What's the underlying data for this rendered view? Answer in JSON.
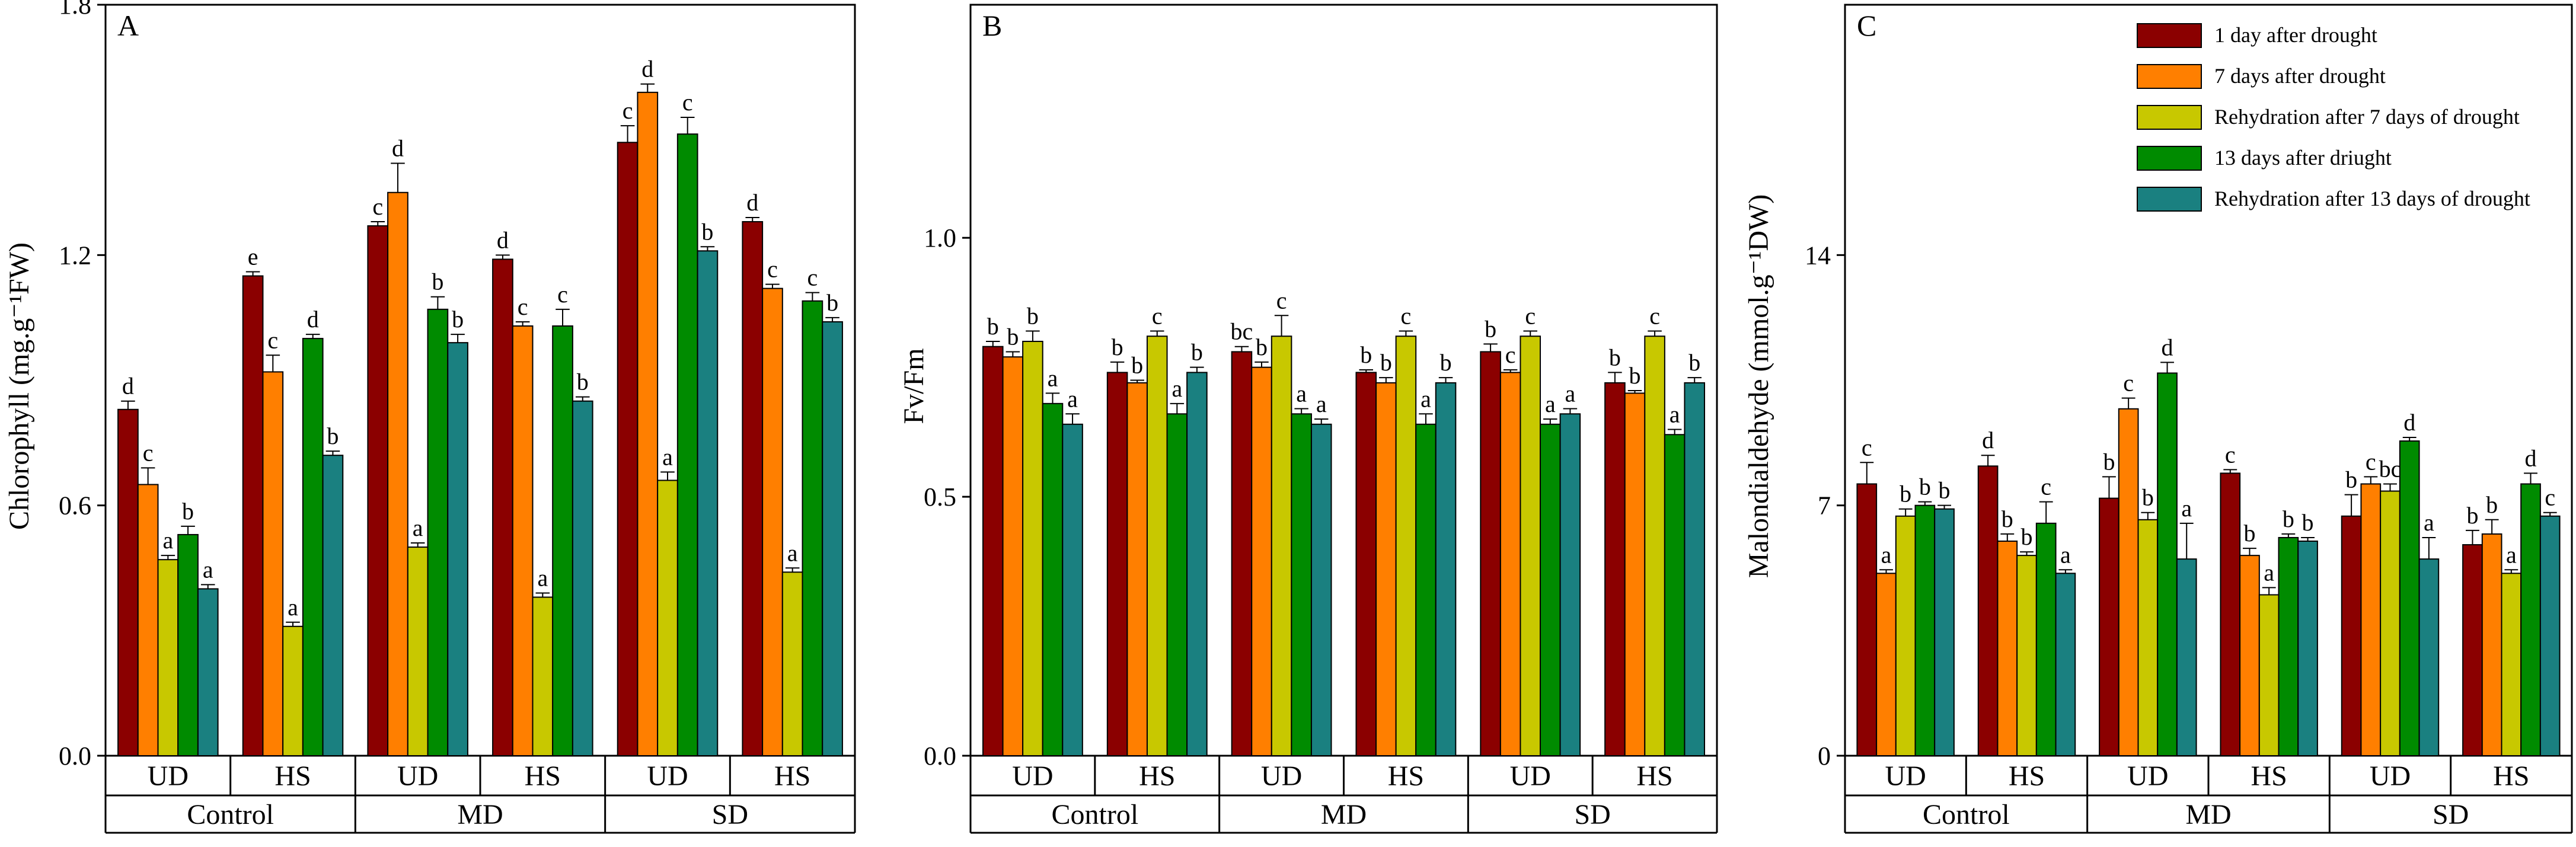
{
  "colors": {
    "series": [
      "#8b0000",
      "#ff7f00",
      "#c8c800",
      "#008b00",
      "#1a8080"
    ]
  },
  "legend": [
    "1 day after drought",
    "7 days after drought",
    "Rehydration after 7 days of drought",
    "13 days after driught",
    "Rehydration after 13 days of drought"
  ],
  "chart_data": [
    {
      "type": "bar",
      "panel": "A",
      "ylabel": "Chlorophyll (mg.g⁻¹FW)",
      "ylim": [
        0,
        1.8
      ],
      "yticks": [
        "0.0",
        "0.6",
        "1.2",
        "1.8"
      ],
      "ytick_values": [
        0,
        0.6,
        1.2,
        1.8
      ],
      "categories": [
        "UD",
        "HS",
        "UD",
        "HS",
        "UD",
        "HS"
      ],
      "groups": [
        "Control",
        "MD",
        "SD"
      ],
      "series": [
        {
          "name": "1 day after drought",
          "values": [
            0.83,
            1.15,
            1.27,
            1.19,
            1.47,
            1.28
          ],
          "errors": [
            0.02,
            0.01,
            0.01,
            0.01,
            0.04,
            0.01
          ],
          "labels": [
            "d",
            "e",
            "c",
            "d",
            "c",
            "d"
          ]
        },
        {
          "name": "7 days after drought",
          "values": [
            0.65,
            0.92,
            1.35,
            1.03,
            1.59,
            1.12
          ],
          "errors": [
            0.04,
            0.04,
            0.07,
            0.01,
            0.02,
            0.01
          ],
          "labels": [
            "c",
            "c",
            "d",
            "c",
            "d",
            "c"
          ]
        },
        {
          "name": "Rehydration after 7 days of drought",
          "values": [
            0.47,
            0.31,
            0.5,
            0.38,
            0.66,
            0.44
          ],
          "errors": [
            0.01,
            0.01,
            0.01,
            0.01,
            0.02,
            0.01
          ],
          "labels": [
            "a",
            "a",
            "a",
            "a",
            "a",
            "a"
          ]
        },
        {
          "name": "13 days after driught",
          "values": [
            0.53,
            1.0,
            1.07,
            1.03,
            1.49,
            1.09
          ],
          "errors": [
            0.02,
            0.01,
            0.03,
            0.04,
            0.04,
            0.02
          ],
          "labels": [
            "b",
            "d",
            "b",
            "c",
            "c",
            "c"
          ]
        },
        {
          "name": "Rehydration after 13 days of drought",
          "values": [
            0.4,
            0.72,
            0.99,
            0.85,
            1.21,
            1.04
          ],
          "errors": [
            0.01,
            0.01,
            0.02,
            0.01,
            0.01,
            0.01
          ],
          "labels": [
            "a",
            "b",
            "b",
            "b",
            "b",
            "b"
          ]
        }
      ]
    },
    {
      "type": "bar",
      "panel": "B",
      "ylabel": "Fv/Fm",
      "ylim": [
        0,
        1.45
      ],
      "yticks": [
        "0.0",
        "0.5",
        "1.0"
      ],
      "ytick_values": [
        0,
        0.5,
        1.0
      ],
      "categories": [
        "UD",
        "HS",
        "UD",
        "HS",
        "UD",
        "HS"
      ],
      "groups": [
        "Control",
        "MD",
        "SD"
      ],
      "series": [
        {
          "name": "1 day after drought",
          "values": [
            0.79,
            0.74,
            0.78,
            0.74,
            0.78,
            0.72
          ],
          "errors": [
            0.01,
            0.02,
            0.01,
            0.005,
            0.015,
            0.02
          ],
          "labels": [
            "b",
            "b",
            "bc",
            "b",
            "b",
            "b"
          ]
        },
        {
          "name": "7 days after drought",
          "values": [
            0.77,
            0.72,
            0.75,
            0.72,
            0.74,
            0.7
          ],
          "errors": [
            0.01,
            0.005,
            0.01,
            0.01,
            0.005,
            0.005
          ],
          "labels": [
            "b",
            "b",
            "b",
            "b",
            "c",
            "b"
          ]
        },
        {
          "name": "Rehydration after 7 days of drought",
          "values": [
            0.8,
            0.81,
            0.81,
            0.81,
            0.81,
            0.81
          ],
          "errors": [
            0.02,
            0.01,
            0.04,
            0.01,
            0.01,
            0.01
          ],
          "labels": [
            "b",
            "c",
            "c",
            "c",
            "c",
            "c"
          ]
        },
        {
          "name": "13 days after driught",
          "values": [
            0.68,
            0.66,
            0.66,
            0.64,
            0.64,
            0.62
          ],
          "errors": [
            0.02,
            0.02,
            0.01,
            0.02,
            0.01,
            0.01
          ],
          "labels": [
            "a",
            "a",
            "a",
            "a",
            "a",
            "a"
          ]
        },
        {
          "name": "Rehydration after 13 days of drought",
          "values": [
            0.64,
            0.74,
            0.64,
            0.72,
            0.66,
            0.72
          ],
          "errors": [
            0.02,
            0.01,
            0.01,
            0.01,
            0.01,
            0.01
          ],
          "labels": [
            "a",
            "b",
            "a",
            "b",
            "a",
            "b"
          ]
        }
      ]
    },
    {
      "type": "bar",
      "panel": "C",
      "ylabel": "Malondialdehyde (mmol.g⁻¹DW)",
      "ylim": [
        0,
        21
      ],
      "yticks": [
        "0",
        "7",
        "14"
      ],
      "ytick_values": [
        0,
        7,
        14
      ],
      "categories": [
        "UD",
        "HS",
        "UD",
        "HS",
        "UD",
        "HS"
      ],
      "groups": [
        "Control",
        "MD",
        "SD"
      ],
      "series": [
        {
          "name": "1 day after drought",
          "values": [
            7.6,
            8.1,
            7.2,
            7.9,
            6.7,
            5.9
          ],
          "errors": [
            0.6,
            0.3,
            0.6,
            0.1,
            0.6,
            0.4
          ],
          "labels": [
            "c",
            "d",
            "b",
            "c",
            "b",
            "b"
          ]
        },
        {
          "name": "7 days after drought",
          "values": [
            5.1,
            6.0,
            9.7,
            5.6,
            7.6,
            6.2
          ],
          "errors": [
            0.1,
            0.2,
            0.3,
            0.2,
            0.2,
            0.4
          ],
          "labels": [
            "a",
            "b",
            "c",
            "b",
            "c",
            "b"
          ]
        },
        {
          "name": "Rehydration after 7 days of drought",
          "values": [
            6.7,
            5.6,
            6.6,
            4.5,
            7.4,
            5.1
          ],
          "errors": [
            0.2,
            0.1,
            0.2,
            0.2,
            0.2,
            0.1
          ],
          "labels": [
            "b",
            "b",
            "b",
            "a",
            "bc",
            "a"
          ]
        },
        {
          "name": "13 days after driught",
          "values": [
            7.0,
            6.5,
            10.7,
            6.1,
            8.8,
            7.6
          ],
          "errors": [
            0.1,
            0.6,
            0.3,
            0.1,
            0.1,
            0.3
          ],
          "labels": [
            "b",
            "c",
            "d",
            "b",
            "d",
            "d"
          ]
        },
        {
          "name": "Rehydration after 13 days of drought",
          "values": [
            6.9,
            5.1,
            5.5,
            6.0,
            5.5,
            6.7
          ],
          "errors": [
            0.1,
            0.1,
            1.0,
            0.1,
            0.6,
            0.1
          ],
          "labels": [
            "b",
            "a",
            "a",
            "b",
            "a",
            "c"
          ]
        }
      ]
    }
  ]
}
